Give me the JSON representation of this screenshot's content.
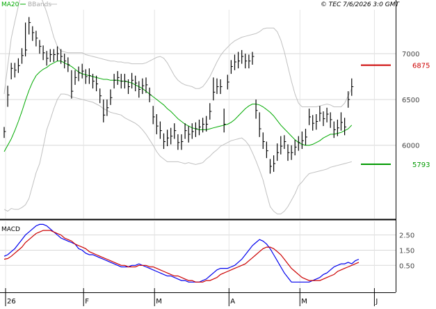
{
  "header": {
    "legend_ma": "MA20",
    "legend_bb": "BBands",
    "timestamp": "© TEC 7/6/2026 3:0 GMT"
  },
  "colors": {
    "price": "#000000",
    "ma": "#00aa00",
    "bbands": "#c0c0c0",
    "resistance": "#cc0000",
    "support": "#009900",
    "macd": "#0000ee",
    "signal": "#cc0000",
    "grid": "#d8d8d8"
  },
  "chart_data": [
    {
      "type": "ohlc",
      "title": "",
      "x_tick_labels": [
        "26",
        "F",
        "M",
        "A",
        "M",
        "J"
      ],
      "x_tick_index": [
        0,
        22,
        42,
        63,
        83,
        104
      ],
      "y_ticks": [
        6000,
        6500,
        7000
      ],
      "y_tick_labels": [
        "6000",
        "6500",
        "7000"
      ],
      "ylim": [
        5200,
        7480
      ],
      "grid": true,
      "legend": {
        "placement": "top-left",
        "entries": [
          "MA20",
          "BBands"
        ]
      },
      "close": [
        6150,
        6550,
        6840,
        6820,
        6870,
        6980,
        7040,
        7340,
        7230,
        7170,
        7080,
        7010,
        6950,
        6990,
        6990,
        7000,
        6970,
        6920,
        6880,
        6590,
        6740,
        6790,
        6810,
        6750,
        6760,
        6700,
        6670,
        6540,
        6330,
        6410,
        6520,
        6710,
        6740,
        6700,
        6700,
        6640,
        6710,
        6680,
        6610,
        6650,
        6660,
        6550,
        6310,
        6210,
        6160,
        6040,
        6080,
        6100,
        6160,
        6030,
        6040,
        6160,
        6120,
        6150,
        6180,
        6200,
        6230,
        6230,
        6370,
        6580,
        6640,
        6640,
        6230,
        6690,
        6860,
        6910,
        6920,
        6970,
        6920,
        6920,
        6970,
        6380,
        6180,
        6040,
        5940,
        5770,
        5800,
        5920,
        5990,
        6040,
        5920,
        5920,
        5980,
        6030,
        6050,
        6090,
        6310,
        6240,
        6260,
        6350,
        6290,
        6340,
        6280,
        6170,
        6190,
        6250,
        6200,
        6500,
        6640
      ],
      "high": [
        6200,
        6650,
        6900,
        6900,
        6950,
        7060,
        7340,
        7400,
        7300,
        7250,
        7150,
        7090,
        7030,
        7050,
        7050,
        7080,
        7050,
        7000,
        6960,
        6820,
        6820,
        6860,
        6890,
        6830,
        6840,
        6780,
        6760,
        6620,
        6500,
        6500,
        6610,
        6780,
        6810,
        6780,
        6780,
        6720,
        6790,
        6760,
        6700,
        6730,
        6740,
        6630,
        6430,
        6340,
        6260,
        6130,
        6170,
        6190,
        6240,
        6120,
        6120,
        6240,
        6210,
        6240,
        6250,
        6280,
        6300,
        6320,
        6460,
        6740,
        6730,
        6720,
        6400,
        6770,
        6930,
        6990,
        7020,
        7040,
        7000,
        6990,
        7020,
        6500,
        6360,
        6140,
        6040,
        5850,
        5890,
        6020,
        6100,
        6110,
        6010,
        6000,
        6060,
        6100,
        6150,
        6180,
        6400,
        6330,
        6340,
        6430,
        6370,
        6410,
        6360,
        6260,
        6280,
        6360,
        6300,
        6590,
        6730
      ],
      "low": [
        6080,
        6420,
        6720,
        6740,
        6790,
        6890,
        6970,
        7210,
        7140,
        7080,
        7000,
        6930,
        6870,
        6910,
        6910,
        6920,
        6890,
        6840,
        6800,
        6510,
        6660,
        6700,
        6730,
        6670,
        6670,
        6620,
        6590,
        6460,
        6250,
        6320,
        6440,
        6620,
        6660,
        6620,
        6620,
        6560,
        6620,
        6590,
        6520,
        6560,
        6570,
        6470,
        6230,
        6120,
        6070,
        5960,
        5990,
        6010,
        6070,
        5950,
        5950,
        6070,
        6030,
        6070,
        6090,
        6110,
        6140,
        6150,
        6280,
        6490,
        6560,
        6560,
        6140,
        6610,
        6780,
        6820,
        6840,
        6890,
        6840,
        6840,
        6880,
        6290,
        6090,
        5960,
        5860,
        5690,
        5710,
        5830,
        5900,
        5960,
        5830,
        5840,
        5890,
        5940,
        5960,
        6000,
        6220,
        6160,
        6170,
        6260,
        6210,
        6250,
        6190,
        6080,
        6100,
        6160,
        6110,
        6410,
        6540
      ],
      "ma20": [
        5930,
        6000,
        6070,
        6160,
        6260,
        6370,
        6490,
        6600,
        6690,
        6760,
        6800,
        6830,
        6850,
        6880,
        6900,
        6920,
        6920,
        6900,
        6880,
        6860,
        6830,
        6800,
        6780,
        6770,
        6760,
        6750,
        6740,
        6730,
        6720,
        6720,
        6710,
        6710,
        6710,
        6700,
        6700,
        6690,
        6680,
        6660,
        6640,
        6620,
        6590,
        6560,
        6530,
        6500,
        6470,
        6440,
        6400,
        6370,
        6330,
        6290,
        6260,
        6230,
        6210,
        6190,
        6180,
        6170,
        6170,
        6170,
        6180,
        6190,
        6200,
        6210,
        6220,
        6230,
        6250,
        6280,
        6320,
        6360,
        6400,
        6430,
        6450,
        6450,
        6440,
        6420,
        6390,
        6360,
        6320,
        6270,
        6220,
        6180,
        6140,
        6100,
        6060,
        6030,
        6010,
        6000,
        6000,
        6010,
        6030,
        6050,
        6080,
        6100,
        6120,
        6120,
        6130,
        6140,
        6160,
        6180,
        6220
      ],
      "bb_upper": [
        6560,
        6870,
        7170,
        7350,
        7520,
        7700,
        7750,
        7750,
        7740,
        7720,
        7650,
        7560,
        7450,
        7320,
        7180,
        7080,
        7030,
        7020,
        7010,
        7010,
        7010,
        7010,
        7010,
        6990,
        6980,
        6970,
        6960,
        6950,
        6940,
        6930,
        6920,
        6920,
        6910,
        6910,
        6900,
        6900,
        6890,
        6890,
        6890,
        6890,
        6900,
        6920,
        6940,
        6960,
        6970,
        6950,
        6900,
        6830,
        6760,
        6710,
        6680,
        6660,
        6650,
        6640,
        6620,
        6620,
        6640,
        6690,
        6750,
        6830,
        6910,
        6980,
        7030,
        7070,
        7110,
        7140,
        7160,
        7180,
        7190,
        7200,
        7210,
        7220,
        7240,
        7270,
        7280,
        7280,
        7280,
        7240,
        7150,
        7020,
        6860,
        6700,
        6560,
        6460,
        6420,
        6420,
        6420,
        6420,
        6420,
        6430,
        6440,
        6450,
        6440,
        6420,
        6420,
        6420,
        6460,
        6540,
        6620
      ],
      "bb_lower": [
        5300,
        5280,
        5310,
        5300,
        5300,
        5320,
        5350,
        5420,
        5560,
        5700,
        5800,
        5980,
        6170,
        6280,
        6400,
        6500,
        6560,
        6560,
        6550,
        6530,
        6520,
        6510,
        6500,
        6490,
        6480,
        6470,
        6450,
        6430,
        6400,
        6380,
        6360,
        6350,
        6340,
        6330,
        6300,
        6280,
        6260,
        6240,
        6210,
        6170,
        6120,
        6060,
        6000,
        5930,
        5880,
        5850,
        5820,
        5820,
        5820,
        5820,
        5810,
        5800,
        5810,
        5800,
        5790,
        5800,
        5810,
        5850,
        5880,
        5920,
        5950,
        5990,
        6010,
        6030,
        6050,
        6060,
        6070,
        6080,
        6050,
        6000,
        5920,
        5830,
        5730,
        5620,
        5470,
        5330,
        5280,
        5250,
        5250,
        5280,
        5330,
        5400,
        5470,
        5560,
        5600,
        5650,
        5690,
        5700,
        5710,
        5720,
        5730,
        5740,
        5760,
        5770,
        5780,
        5790,
        5800,
        5810,
        5820
      ],
      "annotations": [
        {
          "label": "6875",
          "value": 6875,
          "color": "#cc0000"
        },
        {
          "label": "5793",
          "value": 5793,
          "color": "#009900"
        }
      ]
    },
    {
      "type": "line",
      "title": "MACD",
      "y_ticks": [
        0.5,
        1.5,
        2.5
      ],
      "y_tick_labels": [
        "0.50",
        "1.50",
        "2.50"
      ],
      "ylim": [
        -1.0,
        3.4
      ],
      "grid": true,
      "series": [
        {
          "name": "",
          "color": "#0000ee",
          "values": [
            1.1,
            1.2,
            1.4,
            1.6,
            1.9,
            2.2,
            2.5,
            2.7,
            2.9,
            3.1,
            3.2,
            3.2,
            3.1,
            2.9,
            2.7,
            2.5,
            2.3,
            2.2,
            2.1,
            2.0,
            1.9,
            1.6,
            1.5,
            1.3,
            1.2,
            1.2,
            1.1,
            1.0,
            0.9,
            0.8,
            0.7,
            0.6,
            0.5,
            0.4,
            0.4,
            0.4,
            0.5,
            0.5,
            0.6,
            0.5,
            0.4,
            0.3,
            0.2,
            0.1,
            0.0,
            -0.1,
            -0.2,
            -0.2,
            -0.3,
            -0.4,
            -0.5,
            -0.5,
            -0.6,
            -0.6,
            -0.6,
            -0.6,
            -0.5,
            -0.4,
            -0.2,
            0.0,
            0.2,
            0.3,
            0.3,
            0.3,
            0.4,
            0.5,
            0.7,
            0.9,
            1.2,
            1.5,
            1.8,
            2.0,
            2.2,
            2.1,
            1.9,
            1.6,
            1.2,
            0.8,
            0.4,
            0.0,
            -0.3,
            -0.6,
            -0.6,
            -0.6,
            -0.6,
            -0.6,
            -0.6,
            -0.5,
            -0.4,
            -0.3,
            -0.1,
            0.0,
            0.2,
            0.4,
            0.5,
            0.6,
            0.6,
            0.7,
            0.6,
            0.8,
            0.9
          ]
        },
        {
          "name": "",
          "color": "#cc0000",
          "values": [
            0.9,
            0.95,
            1.1,
            1.3,
            1.5,
            1.7,
            2.0,
            2.2,
            2.4,
            2.6,
            2.7,
            2.8,
            2.8,
            2.8,
            2.7,
            2.6,
            2.5,
            2.3,
            2.2,
            2.1,
            1.9,
            1.8,
            1.7,
            1.6,
            1.4,
            1.3,
            1.2,
            1.1,
            1.0,
            0.9,
            0.8,
            0.7,
            0.6,
            0.5,
            0.5,
            0.4,
            0.4,
            0.4,
            0.5,
            0.5,
            0.5,
            0.4,
            0.4,
            0.3,
            0.2,
            0.1,
            0.0,
            -0.1,
            -0.2,
            -0.2,
            -0.3,
            -0.4,
            -0.5,
            -0.5,
            -0.6,
            -0.6,
            -0.6,
            -0.5,
            -0.5,
            -0.4,
            -0.3,
            -0.1,
            0.0,
            0.1,
            0.2,
            0.3,
            0.4,
            0.5,
            0.6,
            0.8,
            1.0,
            1.2,
            1.4,
            1.6,
            1.7,
            1.7,
            1.6,
            1.4,
            1.2,
            0.9,
            0.6,
            0.3,
            0.1,
            -0.1,
            -0.3,
            -0.4,
            -0.5,
            -0.5,
            -0.5,
            -0.5,
            -0.4,
            -0.3,
            -0.2,
            -0.1,
            0.1,
            0.2,
            0.3,
            0.4,
            0.5,
            0.6,
            0.7
          ]
        }
      ]
    }
  ]
}
